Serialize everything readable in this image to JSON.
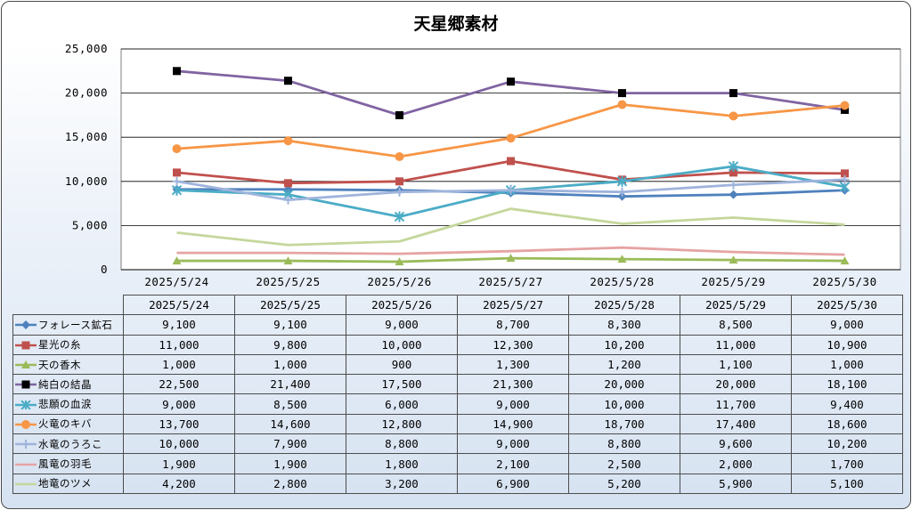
{
  "chart_data": {
    "type": "line",
    "title": "天星郷素材",
    "categories": [
      "2025/5/24",
      "2025/5/25",
      "2025/5/26",
      "2025/5/27",
      "2025/5/28",
      "2025/5/29",
      "2025/5/30"
    ],
    "ylim": [
      0,
      25000
    ],
    "yticks": [
      "0",
      "5,000",
      "10,000",
      "15,000",
      "20,000",
      "25,000"
    ],
    "grid": true,
    "legend": "data-table",
    "series": [
      {
        "name": "フォレース鉱石",
        "color": "#4f81bd",
        "marker": "diamond",
        "values": [
          9100,
          9100,
          9000,
          8700,
          8300,
          8500,
          9000
        ],
        "labels": [
          "9,100",
          "9,100",
          "9,000",
          "8,700",
          "8,300",
          "8,500",
          "9,000"
        ]
      },
      {
        "name": "星光の糸",
        "color": "#c0504d",
        "marker": "square",
        "values": [
          11000,
          9800,
          10000,
          12300,
          10200,
          11000,
          10900
        ],
        "labels": [
          "11,000",
          "9,800",
          "10,000",
          "12,300",
          "10,200",
          "11,000",
          "10,900"
        ]
      },
      {
        "name": "天の香木",
        "color": "#9bbb59",
        "marker": "triangle",
        "values": [
          1000,
          1000,
          900,
          1300,
          1200,
          1100,
          1000
        ],
        "labels": [
          "1,000",
          "1,000",
          "900",
          "1,300",
          "1,200",
          "1,100",
          "1,000"
        ]
      },
      {
        "name": "純白の結晶",
        "color": "#8064a2",
        "marker": "blacksquare",
        "values": [
          22500,
          21400,
          17500,
          21300,
          20000,
          20000,
          18100
        ],
        "labels": [
          "22,500",
          "21,400",
          "17,500",
          "21,300",
          "20,000",
          "20,000",
          "18,100"
        ]
      },
      {
        "name": "悲願の血涙",
        "color": "#4bacc6",
        "marker": "star",
        "values": [
          9000,
          8500,
          6000,
          9000,
          10000,
          11700,
          9400
        ],
        "labels": [
          "9,000",
          "8,500",
          "6,000",
          "9,000",
          "10,000",
          "11,700",
          "9,400"
        ]
      },
      {
        "name": "火竜のキバ",
        "color": "#f79646",
        "marker": "circle",
        "values": [
          13700,
          14600,
          12800,
          14900,
          18700,
          17400,
          18600
        ],
        "labels": [
          "13,700",
          "14,600",
          "12,800",
          "14,900",
          "18,700",
          "17,400",
          "18,600"
        ]
      },
      {
        "name": "水竜のうろこ",
        "color": "#9fb4dc",
        "marker": "plus",
        "values": [
          10000,
          7900,
          8800,
          9000,
          8800,
          9600,
          10200
        ],
        "labels": [
          "10,000",
          "7,900",
          "8,800",
          "9,000",
          "8,800",
          "9,600",
          "10,200"
        ]
      },
      {
        "name": "風竜の羽毛",
        "color": "#e6a3a3",
        "marker": "none",
        "values": [
          1900,
          1900,
          1800,
          2100,
          2500,
          2000,
          1700
        ],
        "labels": [
          "1,900",
          "1,900",
          "1,800",
          "2,100",
          "2,500",
          "2,000",
          "1,700"
        ]
      },
      {
        "name": "地竜のツメ",
        "color": "#c4d79b",
        "marker": "none",
        "values": [
          4200,
          2800,
          3200,
          6900,
          5200,
          5900,
          5100
        ],
        "labels": [
          "4,200",
          "2,800",
          "3,200",
          "6,900",
          "5,200",
          "5,900",
          "5,100"
        ]
      }
    ]
  }
}
